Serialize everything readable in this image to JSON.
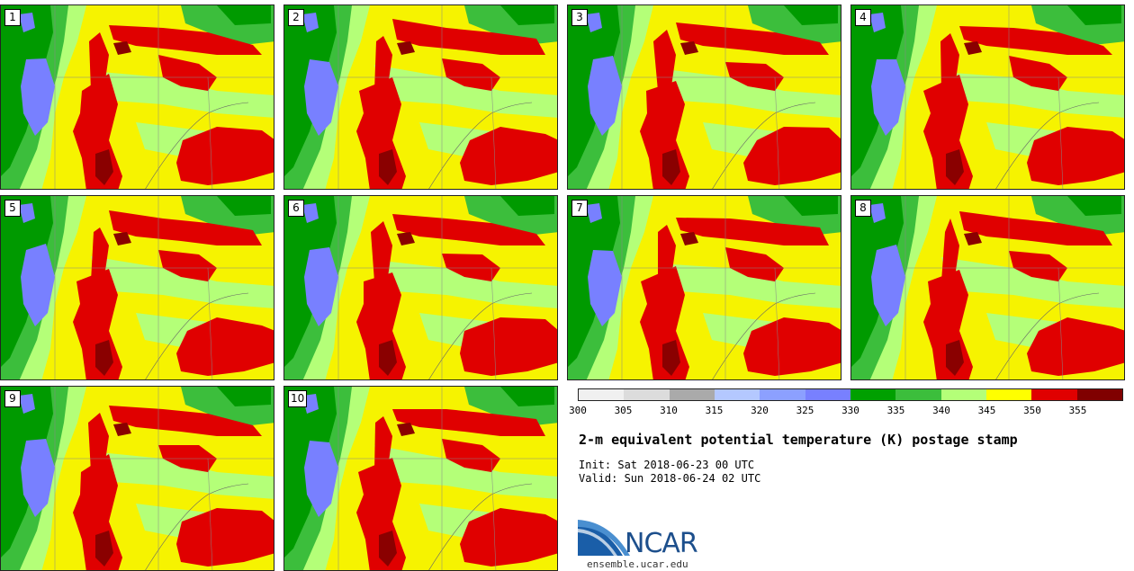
{
  "panels": [
    {
      "label": "1"
    },
    {
      "label": "2"
    },
    {
      "label": "3"
    },
    {
      "label": "4"
    },
    {
      "label": "5"
    },
    {
      "label": "6"
    },
    {
      "label": "7"
    },
    {
      "label": "8"
    },
    {
      "label": "9"
    },
    {
      "label": "10"
    }
  ],
  "colorbar": {
    "colors": [
      "#f0f0f0",
      "#dcdcdc",
      "#aaaaaa",
      "#b4c8ff",
      "#8ca0ff",
      "#7880ff",
      "#00a000",
      "#3cbe3c",
      "#b4ff78",
      "#ffff00",
      "#e00000",
      "#800000"
    ],
    "ticks": [
      "300",
      "305",
      "310",
      "315",
      "320",
      "325",
      "330",
      "335",
      "340",
      "345",
      "350",
      "355"
    ]
  },
  "title": "2-m equivalent potential temperature (K) postage stamp",
  "init": "Init: Sat 2018-06-23 00 UTC",
  "valid": "Valid: Sun 2018-06-24 02 UTC",
  "logo": {
    "text": "NCAR",
    "site": "ensemble.ucar.edu"
  }
}
